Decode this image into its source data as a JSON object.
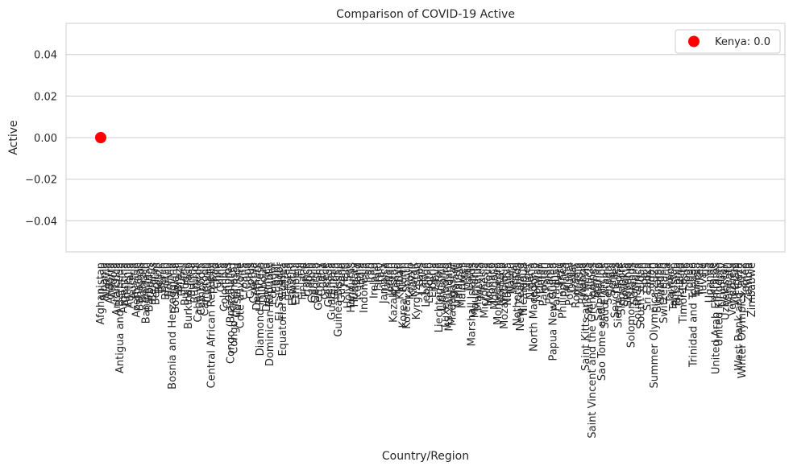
{
  "chart_data": {
    "type": "scatter",
    "title": "Comparison of COVID-19 Active",
    "xlabel": "Country/Region",
    "ylabel": "Active",
    "ylim": [
      -0.055,
      0.055
    ],
    "y_ticks": [
      -0.04,
      -0.02,
      0.0,
      0.02,
      0.04
    ],
    "y_tick_labels": [
      "−0.04",
      "−0.02",
      "0.00",
      "0.02",
      "0.04"
    ],
    "grid": true,
    "legend_position": "top-right",
    "highlight": {
      "label": "Kenya: 0.0",
      "color": "#ff0000"
    },
    "line_color": "#cccccc",
    "categories": [
      "Afghanistan",
      "Albania",
      "Algeria",
      "Andorra",
      "Angola",
      "Antarctica",
      "Antigua and Barbuda",
      "Argentina",
      "Armenia",
      "Australia",
      "Austria",
      "Azerbaijan",
      "Bahamas",
      "Bahrain",
      "Bangladesh",
      "Barbados",
      "Belarus",
      "Belgium",
      "Belize",
      "Benin",
      "Bhutan",
      "Bolivia",
      "Bosnia and Herzegovina",
      "Botswana",
      "Brazil",
      "Brunei",
      "Bulgaria",
      "Burkina Faso",
      "Burma",
      "Burundi",
      "Cabo Verde",
      "Cambodia",
      "Cameroon",
      "Canada",
      "Central African Republic",
      "Chad",
      "Chile",
      "China",
      "Colombia",
      "Comoros",
      "Congo (Brazzaville)",
      "Congo (Kinshasa)",
      "Costa Rica",
      "Cote d'Ivoire",
      "Croatia",
      "Cuba",
      "Cyprus",
      "Czechia",
      "Denmark",
      "Diamond Princess",
      "Djibouti",
      "Dominica",
      "Dominican Republic",
      "Ecuador",
      "Egypt",
      "El Salvador",
      "Equatorial Guinea",
      "Eritrea",
      "Estonia",
      "Eswatini",
      "Ethiopia",
      "Fiji",
      "Finland",
      "France",
      "Gabon",
      "Gambia",
      "Georgia",
      "Germany",
      "Ghana",
      "Greece",
      "Grenada",
      "Guatemala",
      "Guinea",
      "Guinea-Bissau",
      "Guyana",
      "Haiti",
      "Holy See",
      "Honduras",
      "Hungary",
      "Iceland",
      "India",
      "Indonesia",
      "Iran",
      "Iraq",
      "Ireland",
      "Israel",
      "Italy",
      "Jamaica",
      "Japan",
      "Jordan",
      "Kazakhstan",
      "Kenya",
      "Kiribati",
      "Korea, North",
      "Korea, South",
      "Kosovo",
      "Kuwait",
      "Kyrgyzstan",
      "Laos",
      "Latvia",
      "Lebanon",
      "Lesotho",
      "Liberia",
      "Libya",
      "Liechtenstein",
      "Lithuania",
      "Luxembourg",
      "MS Zaandam",
      "Madagascar",
      "Malawi",
      "Malaysia",
      "Maldives",
      "Mali",
      "Malta",
      "Marshall Islands",
      "Mauritania",
      "Mauritius",
      "Mexico",
      "Micronesia",
      "Moldova",
      "Monaco",
      "Mongolia",
      "Montenegro",
      "Morocco",
      "Mozambique",
      "Namibia",
      "Nauru",
      "Nepal",
      "Netherlands",
      "New Zealand",
      "Nicaragua",
      "Niger",
      "Nigeria",
      "North Macedonia",
      "Norway",
      "Oman",
      "Pakistan",
      "Palau",
      "Panama",
      "Papua New Guinea",
      "Paraguay",
      "Peru",
      "Philippines",
      "Poland",
      "Portugal",
      "Qatar",
      "Romania",
      "Russia",
      "Rwanda",
      "Saint Kitts and Nevis",
      "Saint Lucia",
      "Saint Vincent and the Grenadines",
      "Samoa",
      "San Marino",
      "Sao Tome and Principe",
      "Saudi Arabia",
      "Senegal",
      "Serbia",
      "Seychelles",
      "Sierra Leone",
      "Singapore",
      "Slovakia",
      "Slovenia",
      "Solomon Islands",
      "Somalia",
      "South Africa",
      "South Sudan",
      "Spain",
      "Sri Lanka",
      "Sudan",
      "Summer Olympics 2020",
      "Suriname",
      "Sweden",
      "Switzerland",
      "Syria",
      "Taiwan*",
      "Tajikistan",
      "Tanzania",
      "Thailand",
      "Timor-Leste",
      "Togo",
      "Tonga",
      "Trinidad and Tobago",
      "Tunisia",
      "Turkey",
      "Tuvalu",
      "US",
      "Uganda",
      "Ukraine",
      "United Arab Emirates",
      "United Kingdom",
      "Uruguay",
      "Uzbekistan",
      "Vanuatu",
      "Venezuela",
      "Vietnam",
      "West Bank and Gaza",
      "Winter Olympics 2022",
      "Yemen",
      "Zambia",
      "Zimbabwe"
    ],
    "series": [
      {
        "values": "all-zero"
      }
    ]
  }
}
